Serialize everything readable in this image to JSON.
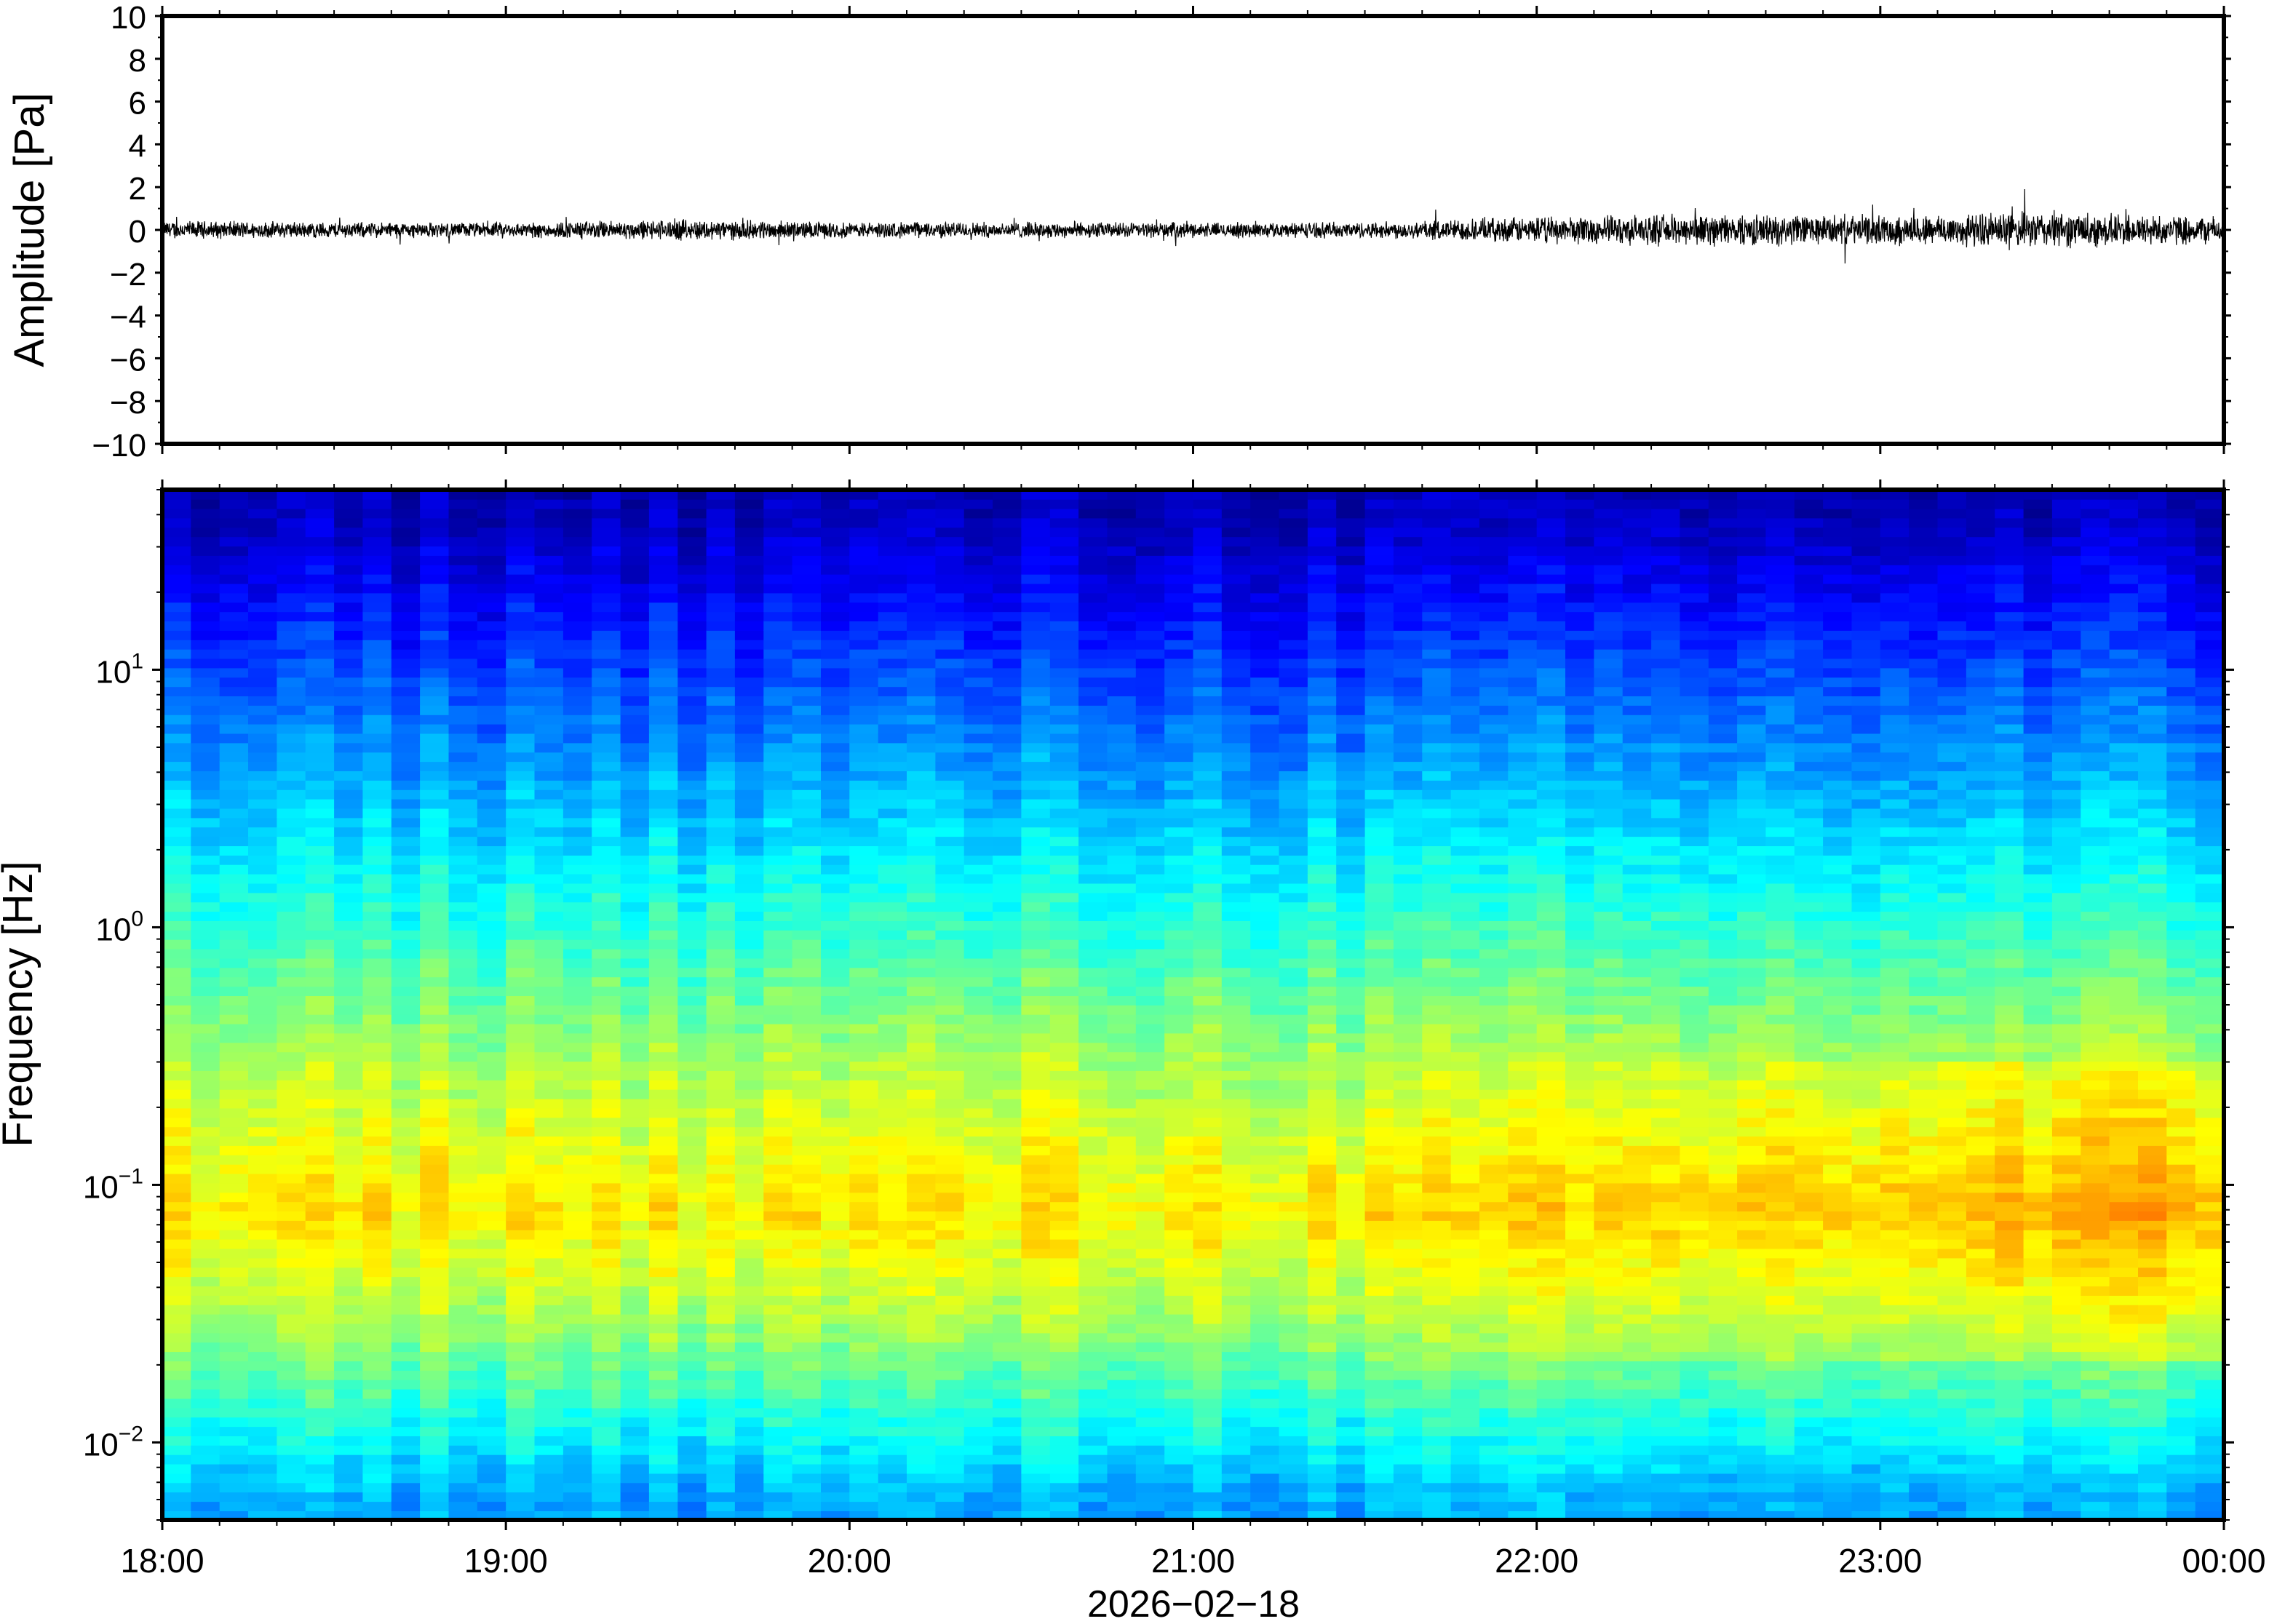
{
  "chart_data": [
    {
      "type": "line",
      "panel": "waveform",
      "ylabel": "Amplitude [Pa]",
      "ylim": [
        -10,
        10
      ],
      "yticks": [
        10,
        8,
        6,
        4,
        2,
        0,
        -2,
        -4,
        -6,
        -8,
        -10
      ],
      "ytick_labels": [
        "10",
        "8",
        "6",
        "4",
        "2",
        "0",
        "−2",
        "−4",
        "−6",
        "−8",
        "−10"
      ],
      "xlim": [
        "18:00",
        "00:00"
      ],
      "grid": false,
      "color": "#000000",
      "series": [
        {
          "x_hours": [
            18.0,
            18.5,
            19.0,
            19.5,
            20.0,
            20.5,
            21.0,
            21.5,
            22.0,
            22.5,
            23.0,
            23.5,
            24.0
          ],
          "envelope": [
            0.35,
            0.3,
            0.28,
            0.4,
            0.3,
            0.3,
            0.28,
            0.3,
            0.5,
            0.6,
            0.55,
            0.7,
            0.5
          ]
        }
      ]
    },
    {
      "type": "heatmap",
      "panel": "spectrogram",
      "ylabel": "Frequency [Hz]",
      "yscale": "log",
      "ylim": [
        0.005,
        50
      ],
      "yticks": [
        0.01,
        0.1,
        1,
        10
      ],
      "ytick_labels": [
        {
          "base": "10",
          "exp": "−2"
        },
        {
          "base": "10",
          "exp": "−1"
        },
        {
          "base": "10",
          "exp": "0"
        },
        {
          "base": "10",
          "exp": "1"
        }
      ],
      "xlabel": "2026−02−18",
      "xticks": [
        18,
        19,
        20,
        21,
        22,
        23,
        24
      ],
      "xtick_labels": [
        "18:00",
        "19:00",
        "20:00",
        "21:00",
        "22:00",
        "23:00",
        "00:00"
      ],
      "colormap": "jet",
      "colormap_stops": [
        "#00008f",
        "#0000ff",
        "#0080ff",
        "#00ffff",
        "#80ff80",
        "#ffff00",
        "#ff8000",
        "#ff0000"
      ],
      "description_of_intensity": [
        {
          "freq_hz": 40,
          "level": 0.05
        },
        {
          "freq_hz": 10,
          "level": 0.22
        },
        {
          "freq_hz": 1,
          "level": 0.48
        },
        {
          "freq_hz": 0.3,
          "level": 0.62
        },
        {
          "freq_hz": 0.08,
          "level": 0.74
        },
        {
          "freq_hz": 0.03,
          "level": 0.62
        },
        {
          "freq_hz": 0.01,
          "level": 0.42
        },
        {
          "freq_hz": 0.006,
          "level": 0.33
        }
      ]
    }
  ]
}
